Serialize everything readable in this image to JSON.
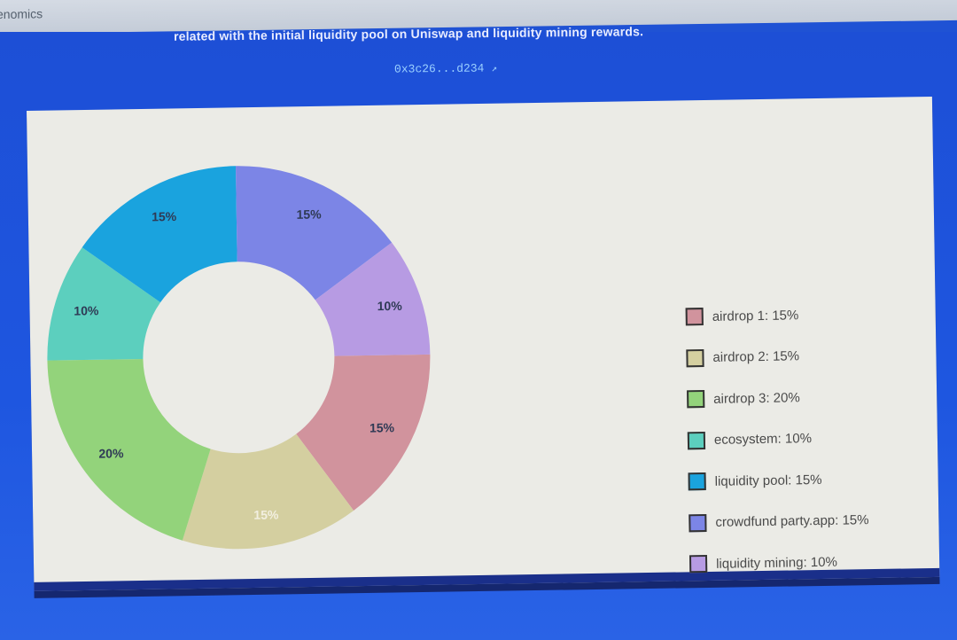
{
  "window": {
    "title_fragment": "enomics"
  },
  "header": {
    "subtitle": "related with the initial liquidity pool on Uniswap and liquidity mining rewards.",
    "address": "0x3c26...d234"
  },
  "chart_data": {
    "type": "pie",
    "donut": true,
    "slices": [
      {
        "label": "airdrop 1",
        "legend": "airdrop 1: 15%",
        "value": 15,
        "display": "15%",
        "color": "#d1939d"
      },
      {
        "label": "airdrop 2",
        "legend": "airdrop 2: 15%",
        "value": 15,
        "display": "15%",
        "color": "#d4cfa0"
      },
      {
        "label": "airdrop 3",
        "legend": "airdrop 3: 20%",
        "value": 20,
        "display": "20%",
        "color": "#93d37b"
      },
      {
        "label": "ecosystem",
        "legend": "ecosystem: 10%",
        "value": 10,
        "display": "10%",
        "color": "#5ccfbe"
      },
      {
        "label": "liquidity pool",
        "legend": "liquidity pool: 15%",
        "value": 15,
        "display": "15%",
        "color": "#1aa3de"
      },
      {
        "label": "crowdfund party.app",
        "legend": "crowdfund party.app: 15%",
        "value": 15,
        "display": "15%",
        "color": "#7c85e6"
      },
      {
        "label": "liquidity mining",
        "legend": "liquidity mining: 10%",
        "value": 10,
        "display": "10%",
        "color": "#b79be3"
      }
    ],
    "legend_position": "right"
  }
}
